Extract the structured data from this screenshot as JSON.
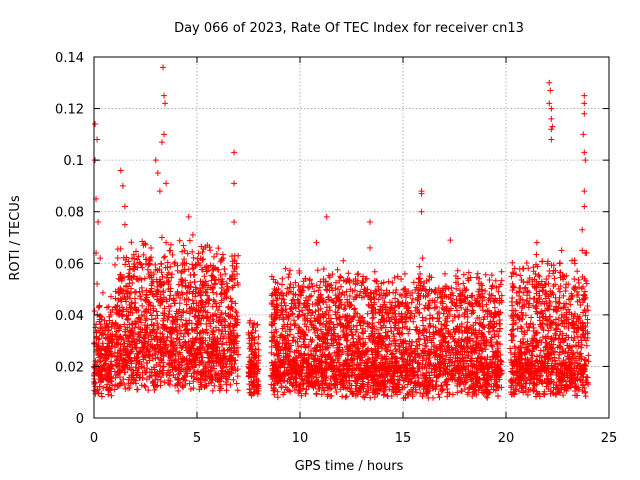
{
  "chart_data": {
    "type": "scatter",
    "title": "Day 066 of 2023, Rate Of TEC Index for receiver cn13",
    "xlabel": "GPS time / hours",
    "ylabel": "ROTI / TECUs",
    "xlim": [
      0,
      25
    ],
    "ylim": [
      0,
      0.14
    ],
    "xticks": [
      0,
      5,
      10,
      15,
      20,
      25
    ],
    "xtick_labels": [
      "0",
      "5",
      "10",
      "15",
      "20",
      "25"
    ],
    "yticks": [
      0,
      0.02,
      0.04,
      0.06,
      0.08,
      0.1,
      0.12,
      0.14
    ],
    "ytick_labels": [
      "0",
      "0.02",
      "0.04",
      "0.06",
      "0.08",
      "0.1",
      "0.12",
      "0.14"
    ],
    "grid": true,
    "marker": "+",
    "color": "#ff0000",
    "dense_bands": [
      {
        "x_start": 0.0,
        "x_end": 0.9,
        "y_base": 0.015,
        "y_spread": 0.03
      },
      {
        "x_start": 1.0,
        "x_end": 7.0,
        "y_base": 0.02,
        "y_spread": 0.045
      },
      {
        "x_start": 7.5,
        "x_end": 8.0,
        "y_base": 0.015,
        "y_spread": 0.02
      },
      {
        "x_start": 8.6,
        "x_end": 19.8,
        "y_base": 0.015,
        "y_spread": 0.04
      },
      {
        "x_start": 20.2,
        "x_end": 24.0,
        "y_base": 0.015,
        "y_spread": 0.045
      }
    ],
    "points": [
      {
        "x": 0.05,
        "y": 0.114
      },
      {
        "x": 0.05,
        "y": 0.1
      },
      {
        "x": 0.15,
        "y": 0.108
      },
      {
        "x": 0.1,
        "y": 0.085
      },
      {
        "x": 0.2,
        "y": 0.076
      },
      {
        "x": 0.1,
        "y": 0.064
      },
      {
        "x": 0.15,
        "y": 0.052
      },
      {
        "x": 0.3,
        "y": 0.062
      },
      {
        "x": 1.3,
        "y": 0.096
      },
      {
        "x": 1.4,
        "y": 0.09
      },
      {
        "x": 1.5,
        "y": 0.082
      },
      {
        "x": 1.5,
        "y": 0.075
      },
      {
        "x": 2.4,
        "y": 0.067
      },
      {
        "x": 3.0,
        "y": 0.1
      },
      {
        "x": 3.1,
        "y": 0.095
      },
      {
        "x": 3.2,
        "y": 0.088
      },
      {
        "x": 3.3,
        "y": 0.107
      },
      {
        "x": 3.4,
        "y": 0.11
      },
      {
        "x": 3.35,
        "y": 0.136
      },
      {
        "x": 3.4,
        "y": 0.125
      },
      {
        "x": 3.45,
        "y": 0.122
      },
      {
        "x": 3.5,
        "y": 0.091
      },
      {
        "x": 3.3,
        "y": 0.07
      },
      {
        "x": 3.5,
        "y": 0.068
      },
      {
        "x": 4.6,
        "y": 0.078
      },
      {
        "x": 4.8,
        "y": 0.071
      },
      {
        "x": 5.5,
        "y": 0.067
      },
      {
        "x": 6.8,
        "y": 0.103
      },
      {
        "x": 6.8,
        "y": 0.091
      },
      {
        "x": 6.8,
        "y": 0.076
      },
      {
        "x": 10.8,
        "y": 0.068
      },
      {
        "x": 11.3,
        "y": 0.078
      },
      {
        "x": 12.1,
        "y": 0.061
      },
      {
        "x": 13.4,
        "y": 0.076
      },
      {
        "x": 13.4,
        "y": 0.066
      },
      {
        "x": 15.9,
        "y": 0.088
      },
      {
        "x": 15.9,
        "y": 0.087
      },
      {
        "x": 15.9,
        "y": 0.08
      },
      {
        "x": 15.95,
        "y": 0.062
      },
      {
        "x": 17.3,
        "y": 0.069
      },
      {
        "x": 22.1,
        "y": 0.13
      },
      {
        "x": 22.15,
        "y": 0.127
      },
      {
        "x": 22.1,
        "y": 0.122
      },
      {
        "x": 22.2,
        "y": 0.12
      },
      {
        "x": 22.2,
        "y": 0.116
      },
      {
        "x": 22.25,
        "y": 0.113
      },
      {
        "x": 22.2,
        "y": 0.112
      },
      {
        "x": 22.2,
        "y": 0.108
      },
      {
        "x": 23.8,
        "y": 0.125
      },
      {
        "x": 23.8,
        "y": 0.122
      },
      {
        "x": 23.8,
        "y": 0.118
      },
      {
        "x": 23.75,
        "y": 0.11
      },
      {
        "x": 23.8,
        "y": 0.103
      },
      {
        "x": 23.85,
        "y": 0.1
      },
      {
        "x": 23.8,
        "y": 0.088
      },
      {
        "x": 23.8,
        "y": 0.082
      },
      {
        "x": 23.7,
        "y": 0.073
      },
      {
        "x": 23.7,
        "y": 0.065
      },
      {
        "x": 21.5,
        "y": 0.068
      },
      {
        "x": 22.7,
        "y": 0.065
      }
    ]
  }
}
